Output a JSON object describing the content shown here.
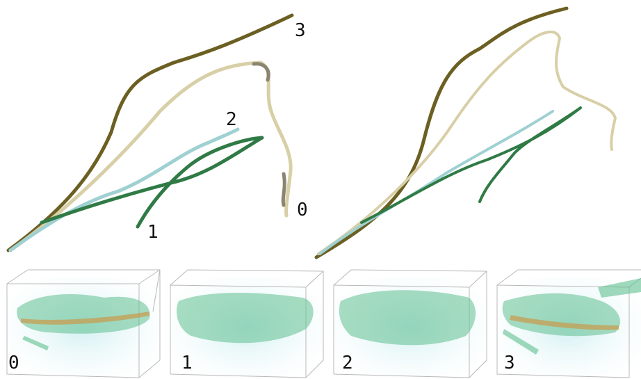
{
  "trajectory_labels": [
    "3",
    "2",
    "0",
    "1"
  ],
  "volume_labels": [
    "0",
    "1",
    "2",
    "3"
  ]
}
